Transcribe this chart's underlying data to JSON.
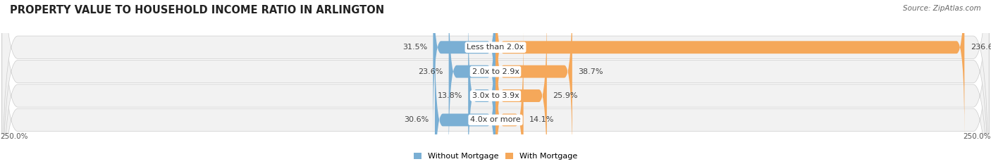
{
  "title": "PROPERTY VALUE TO HOUSEHOLD INCOME RATIO IN ARLINGTON",
  "source": "Source: ZipAtlas.com",
  "categories": [
    "Less than 2.0x",
    "2.0x to 2.9x",
    "3.0x to 3.9x",
    "4.0x or more"
  ],
  "without_mortgage": [
    31.5,
    23.6,
    13.8,
    30.6
  ],
  "with_mortgage": [
    236.6,
    38.7,
    25.9,
    14.1
  ],
  "xlim": [
    -250,
    250
  ],
  "xtick_labels": [
    "250.0%",
    "250.0%"
  ],
  "color_without": "#7aafd4",
  "color_with": "#f5a85a",
  "color_without_3": "#a8c8e8",
  "row_bg_outer": "#e0e0e0",
  "row_bg_inner": "#f2f2f2",
  "background_color": "#ffffff",
  "title_fontsize": 10.5,
  "source_fontsize": 7.5,
  "label_fontsize": 8,
  "category_fontsize": 8,
  "legend_fontsize": 8,
  "axis_label_fontsize": 7.5,
  "bar_height": 0.52
}
